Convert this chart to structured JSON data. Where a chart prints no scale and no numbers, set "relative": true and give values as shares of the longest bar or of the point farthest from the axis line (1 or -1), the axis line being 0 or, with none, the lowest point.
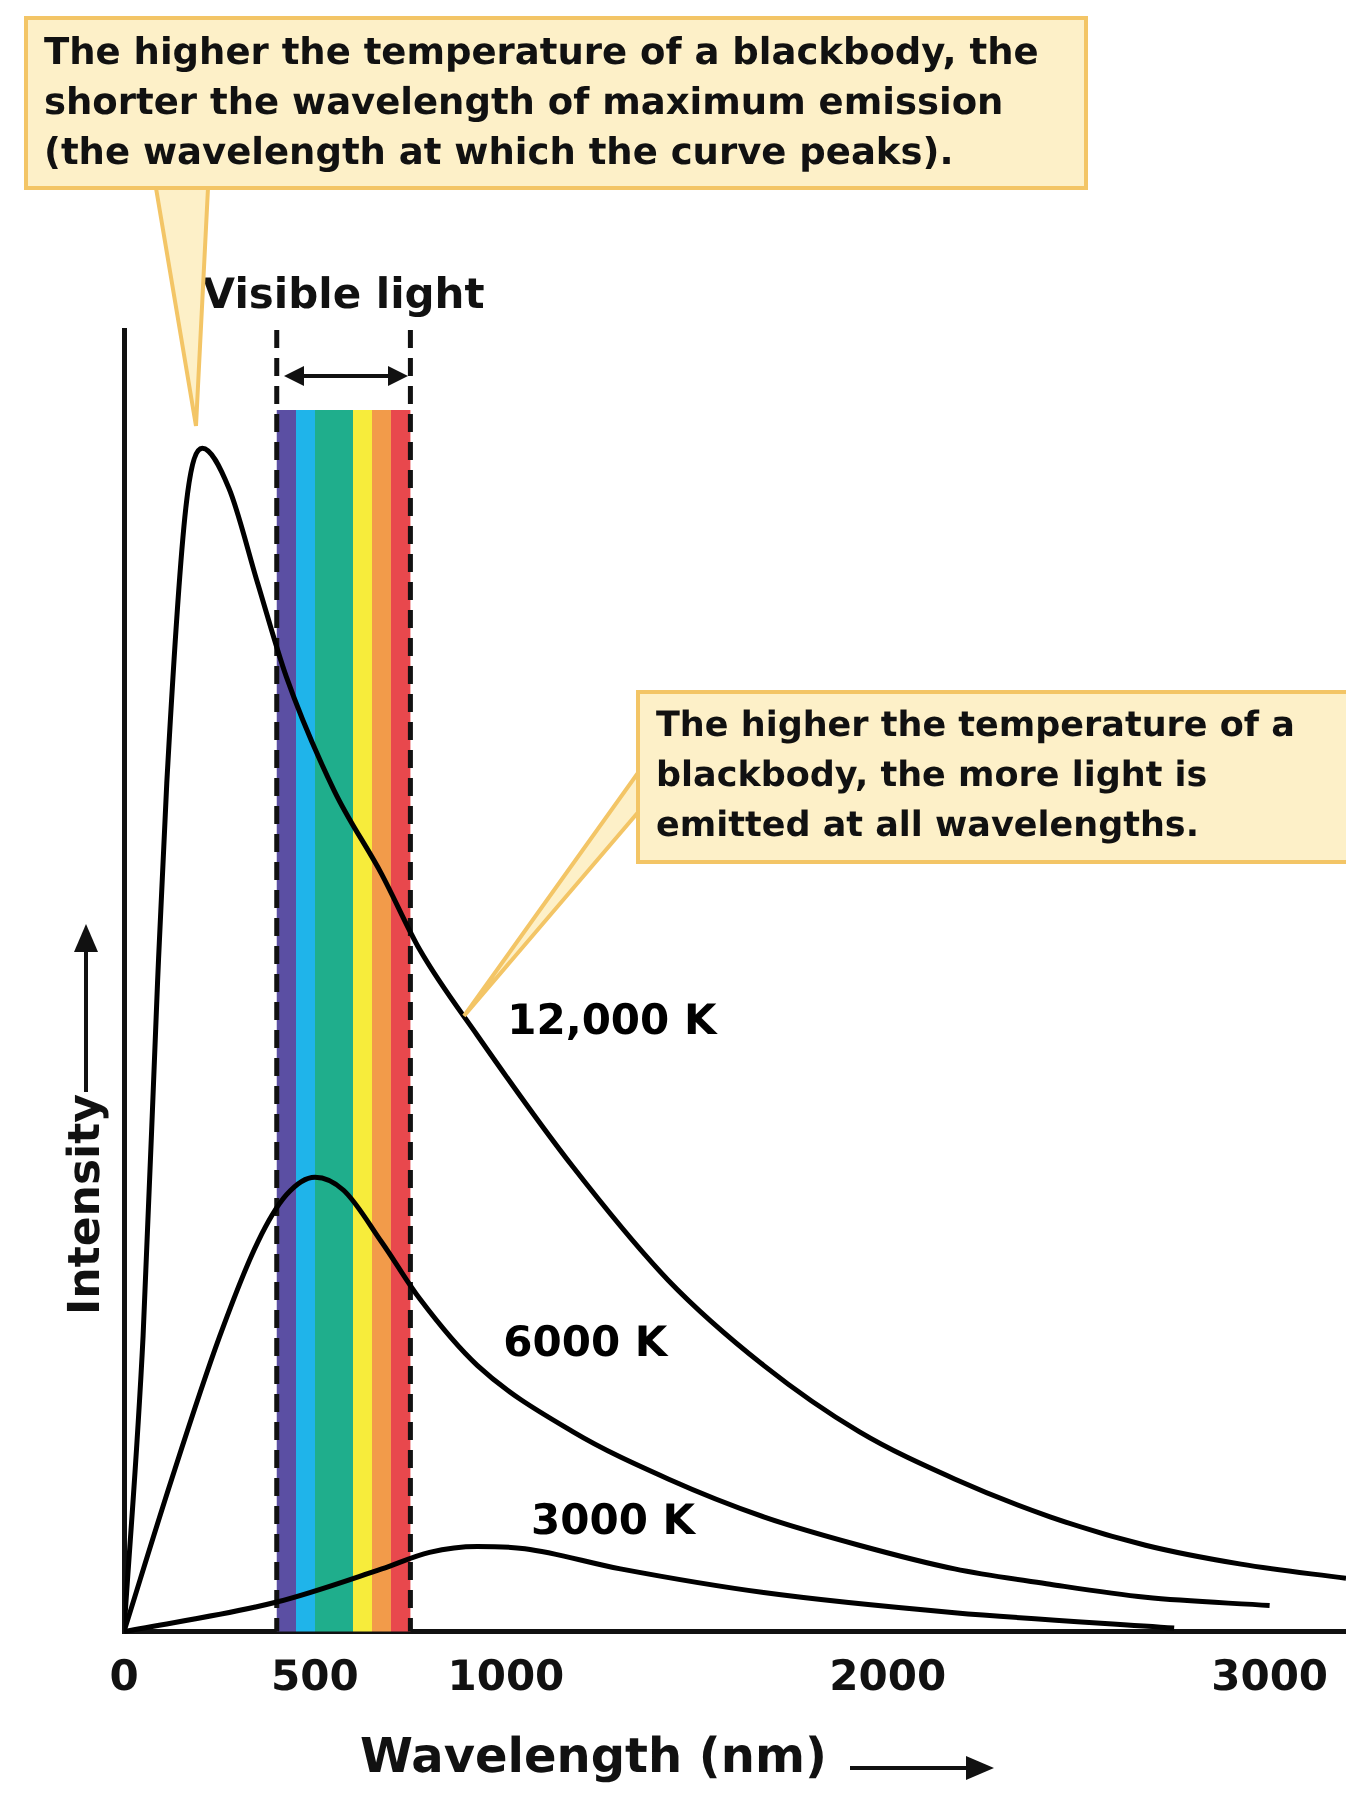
{
  "chart_data": {
    "type": "line",
    "relative": true,
    "xlabel": "Wavelength (nm)",
    "ylabel": "Intensity",
    "xlim": [
      0,
      3200
    ],
    "xticks": [
      0,
      500,
      1000,
      2000,
      3000
    ],
    "grid": false,
    "legend": false,
    "marker": "none",
    "line_style": "solid",
    "bands": [
      {
        "axis": "x",
        "from": 400,
        "to": 750,
        "label": "Visible light"
      }
    ],
    "ref_lines": [
      {
        "axis": "x",
        "value": 400,
        "line_style": "dashed",
        "color": "#111111"
      },
      {
        "axis": "x",
        "value": 750,
        "line_style": "dashed",
        "color": "#111111"
      }
    ],
    "annotations": [
      "The higher the temperature of a blackbody, the shorter the wavelength of maximum emission (the wavelength at which the curve peaks).",
      "The higher the temperature of a blackbody, the more light is emitted at all wavelengths."
    ],
    "series": [
      {
        "name": "12,000 K",
        "color": "#000000",
        "x": [
          0,
          50,
          88,
          112,
          162,
          205,
          275,
          350,
          425,
          550,
          675,
          775,
          925,
          1175,
          1425,
          1675,
          1925,
          2175,
          2425,
          2675,
          2925,
          3200
        ],
        "values": [
          0,
          0.25,
          0.55,
          0.717,
          0.95,
          1,
          0.966,
          0.886,
          0.807,
          0.711,
          0.64,
          0.576,
          0.504,
          0.393,
          0.297,
          0.225,
          0.169,
          0.129,
          0.097,
          0.073,
          0.057,
          0.045
        ]
      },
      {
        "name": "6000 K",
        "color": "#000000",
        "x": [
          0,
          125,
          250,
          350,
          425,
          500,
          575,
          675,
          775,
          925,
          1175,
          1425,
          1675,
          1925,
          2175,
          2425,
          2675,
          3000
        ],
        "values": [
          0,
          0.129,
          0.249,
          0.329,
          0.369,
          0.384,
          0.373,
          0.329,
          0.281,
          0.225,
          0.169,
          0.129,
          0.097,
          0.073,
          0.053,
          0.04,
          0.029,
          0.022
        ]
      },
      {
        "name": "3000 K",
        "color": "#000000",
        "x": [
          0,
          400,
          675,
          800,
          925,
          1050,
          1300,
          1675,
          2175,
          2750
        ],
        "values": [
          0,
          0.025,
          0.053,
          0.067,
          0.072,
          0.07,
          0.053,
          0.033,
          0.016,
          0.003
        ]
      }
    ]
  }
}
